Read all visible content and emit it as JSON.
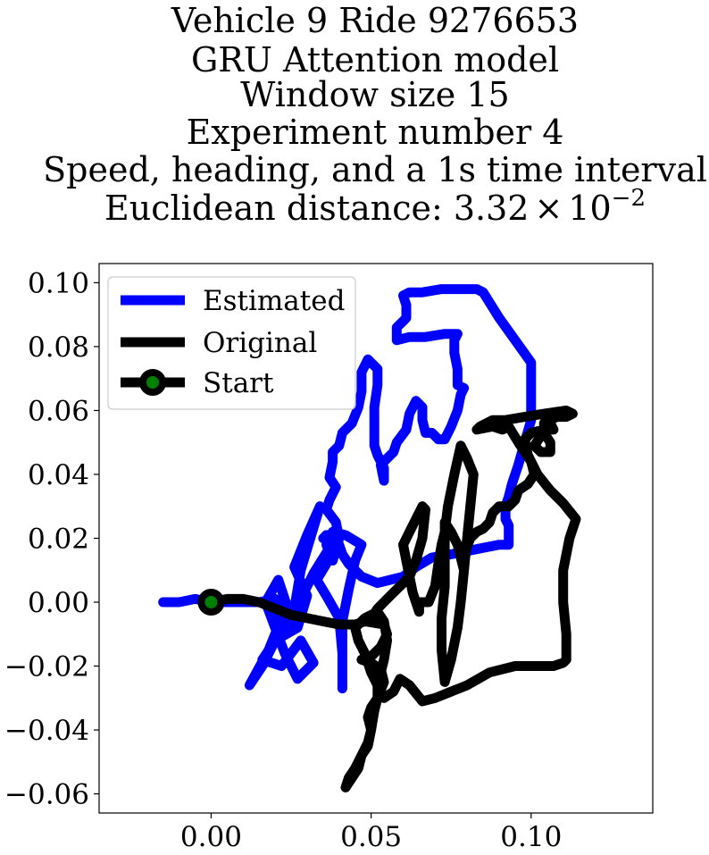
{
  "chart_data": {
    "type": "line",
    "title_lines": [
      "Vehicle 9 Ride 9276653",
      "GRU Attention model",
      "Window size 15",
      "Experiment number 4",
      "Speed, heading, and a 1s time interval",
      "Euclidean distance: "
    ],
    "title_value": {
      "mantissa": "3.32",
      "times": "×",
      "base": "10",
      "exponent": "−2"
    },
    "xlabel": "",
    "ylabel": "",
    "xlim": [
      -0.035,
      0.138
    ],
    "ylim": [
      -0.066,
      0.106
    ],
    "xticks": [
      0.0,
      0.05,
      0.1
    ],
    "xtick_labels": [
      "0.00",
      "0.05",
      "0.10"
    ],
    "yticks": [
      0.1,
      0.08,
      0.06,
      0.04,
      0.02,
      0.0,
      -0.02,
      -0.04,
      -0.06
    ],
    "ytick_labels": [
      "0.10",
      "0.08",
      "0.06",
      "0.04",
      "0.02",
      "0.00",
      "−0.02",
      "−0.04",
      "−0.06"
    ],
    "grid": false,
    "legend_position": "upper-left",
    "series": [
      {
        "name": "Estimated",
        "color": "#0000ff",
        "points": [
          [
            -0.015,
            0.0
          ],
          [
            -0.01,
            0.0
          ],
          [
            -0.005,
            0.001
          ],
          [
            0.0,
            0.0
          ],
          [
            0.005,
            0.0
          ],
          [
            0.01,
            0.0
          ],
          [
            0.015,
            0.0
          ],
          [
            0.02,
            0.001
          ],
          [
            0.022,
            -0.005
          ],
          [
            0.018,
            -0.015
          ],
          [
            0.012,
            -0.026
          ],
          [
            0.016,
            -0.02
          ],
          [
            0.02,
            -0.012
          ],
          [
            0.024,
            -0.002
          ],
          [
            0.021,
            0.007
          ],
          [
            0.017,
            0.0
          ],
          [
            0.02,
            -0.008
          ],
          [
            0.023,
            -0.016
          ],
          [
            0.027,
            -0.024
          ],
          [
            0.032,
            -0.019
          ],
          [
            0.028,
            -0.012
          ],
          [
            0.022,
            -0.02
          ],
          [
            0.016,
            -0.018
          ],
          [
            0.02,
            -0.012
          ],
          [
            0.027,
            -0.008
          ],
          [
            0.03,
            0.002
          ],
          [
            0.026,
            0.011
          ],
          [
            0.03,
            0.021
          ],
          [
            0.034,
            0.03
          ],
          [
            0.031,
            0.02
          ],
          [
            0.028,
            0.01
          ],
          [
            0.026,
            -0.002
          ],
          [
            0.024,
            -0.008
          ],
          [
            0.028,
            0.001
          ],
          [
            0.032,
            0.009
          ],
          [
            0.037,
            0.017
          ],
          [
            0.036,
            0.012
          ],
          [
            0.033,
            0.007
          ],
          [
            0.036,
            0.002
          ],
          [
            0.04,
            -0.005
          ],
          [
            0.041,
            -0.016
          ],
          [
            0.041,
            -0.027
          ],
          [
            0.041,
            -0.015
          ],
          [
            0.041,
            -0.006
          ],
          [
            0.043,
            0.004
          ],
          [
            0.045,
            0.013
          ],
          [
            0.047,
            0.018
          ],
          [
            0.042,
            0.021
          ],
          [
            0.038,
            0.022
          ],
          [
            0.036,
            0.018
          ],
          [
            0.038,
            0.013
          ],
          [
            0.04,
            0.02
          ],
          [
            0.039,
            0.025
          ],
          [
            0.036,
            0.029
          ],
          [
            0.037,
            0.032
          ],
          [
            0.039,
            0.036
          ],
          [
            0.037,
            0.039
          ],
          [
            0.038,
            0.044
          ],
          [
            0.038,
            0.047
          ],
          [
            0.04,
            0.049
          ],
          [
            0.041,
            0.053
          ],
          [
            0.044,
            0.056
          ],
          [
            0.046,
            0.061
          ],
          [
            0.047,
            0.066
          ],
          [
            0.047,
            0.072
          ],
          [
            0.049,
            0.076
          ],
          [
            0.052,
            0.073
          ],
          [
            0.052,
            0.068
          ],
          [
            0.051,
            0.061
          ],
          [
            0.051,
            0.055
          ],
          [
            0.051,
            0.049
          ],
          [
            0.052,
            0.046
          ],
          [
            0.054,
            0.042
          ],
          [
            0.054,
            0.038
          ],
          [
            0.053,
            0.043
          ],
          [
            0.055,
            0.045
          ],
          [
            0.057,
            0.047
          ],
          [
            0.058,
            0.05
          ],
          [
            0.061,
            0.054
          ],
          [
            0.062,
            0.059
          ],
          [
            0.064,
            0.063
          ],
          [
            0.066,
            0.061
          ],
          [
            0.066,
            0.057
          ],
          [
            0.067,
            0.053
          ],
          [
            0.069,
            0.053
          ],
          [
            0.071,
            0.051
          ],
          [
            0.073,
            0.051
          ],
          [
            0.075,
            0.055
          ],
          [
            0.077,
            0.06
          ],
          [
            0.078,
            0.065
          ],
          [
            0.079,
            0.067
          ],
          [
            0.077,
            0.068
          ],
          [
            0.077,
            0.073
          ],
          [
            0.076,
            0.078
          ],
          [
            0.076,
            0.082
          ],
          [
            0.077,
            0.084
          ],
          [
            0.073,
            0.084
          ],
          [
            0.067,
            0.083
          ],
          [
            0.062,
            0.083
          ],
          [
            0.058,
            0.082
          ],
          [
            0.058,
            0.086
          ],
          [
            0.06,
            0.088
          ],
          [
            0.061,
            0.089
          ],
          [
            0.061,
            0.093
          ],
          [
            0.06,
            0.096
          ],
          [
            0.062,
            0.097
          ],
          [
            0.066,
            0.097
          ],
          [
            0.072,
            0.098
          ],
          [
            0.078,
            0.098
          ],
          [
            0.083,
            0.098
          ],
          [
            0.085,
            0.097
          ],
          [
            0.09,
            0.089
          ],
          [
            0.095,
            0.082
          ],
          [
            0.1,
            0.075
          ],
          [
            0.1,
            0.064
          ],
          [
            0.1,
            0.057
          ],
          [
            0.098,
            0.05
          ],
          [
            0.096,
            0.043
          ],
          [
            0.094,
            0.037
          ],
          [
            0.093,
            0.033
          ],
          [
            0.092,
            0.03
          ],
          [
            0.092,
            0.026
          ],
          [
            0.093,
            0.024
          ],
          [
            0.093,
            0.02
          ],
          [
            0.093,
            0.019
          ],
          [
            0.093,
            0.018
          ],
          [
            0.09,
            0.018
          ],
          [
            0.085,
            0.017
          ],
          [
            0.08,
            0.016
          ],
          [
            0.075,
            0.015
          ],
          [
            0.069,
            0.014
          ],
          [
            0.064,
            0.011
          ],
          [
            0.06,
            0.008
          ],
          [
            0.056,
            0.007
          ],
          [
            0.052,
            0.006
          ],
          [
            0.047,
            0.008
          ],
          [
            0.045,
            0.01
          ],
          [
            0.043,
            0.012
          ],
          [
            0.041,
            0.015
          ],
          [
            0.04,
            0.018
          ],
          [
            0.038,
            0.021
          ],
          [
            0.036,
            0.021
          ],
          [
            0.035,
            0.02
          ]
        ]
      },
      {
        "name": "Original",
        "color": "#000000",
        "points": [
          [
            0.0,
            0.0
          ],
          [
            0.005,
            0.001
          ],
          [
            0.01,
            0.001
          ],
          [
            0.015,
            0.0
          ],
          [
            0.02,
            -0.002
          ],
          [
            0.025,
            -0.004
          ],
          [
            0.03,
            -0.005
          ],
          [
            0.035,
            -0.006
          ],
          [
            0.04,
            -0.007
          ],
          [
            0.045,
            -0.007
          ],
          [
            0.048,
            -0.006
          ],
          [
            0.054,
            -0.007
          ],
          [
            0.055,
            -0.01
          ],
          [
            0.053,
            -0.014
          ],
          [
            0.05,
            -0.017
          ],
          [
            0.047,
            -0.018
          ],
          [
            0.05,
            -0.019
          ],
          [
            0.053,
            -0.021
          ],
          [
            0.054,
            -0.025
          ],
          [
            0.052,
            -0.03
          ],
          [
            0.05,
            -0.033
          ],
          [
            0.049,
            -0.036
          ],
          [
            0.05,
            -0.04
          ],
          [
            0.049,
            -0.045
          ],
          [
            0.047,
            -0.048
          ],
          [
            0.046,
            -0.052
          ],
          [
            0.044,
            -0.055
          ],
          [
            0.042,
            -0.058
          ],
          [
            0.043,
            -0.055
          ],
          [
            0.045,
            -0.052
          ],
          [
            0.047,
            -0.048
          ],
          [
            0.049,
            -0.044
          ],
          [
            0.05,
            -0.04
          ],
          [
            0.051,
            -0.034
          ],
          [
            0.052,
            -0.03
          ],
          [
            0.052,
            -0.026
          ],
          [
            0.053,
            -0.022
          ],
          [
            0.054,
            -0.018
          ],
          [
            0.055,
            -0.012
          ],
          [
            0.054,
            -0.006
          ],
          [
            0.052,
            -0.003
          ],
          [
            0.048,
            -0.005
          ],
          [
            0.045,
            -0.008
          ],
          [
            0.046,
            -0.012
          ],
          [
            0.048,
            -0.016
          ],
          [
            0.05,
            -0.022
          ],
          [
            0.052,
            -0.026
          ],
          [
            0.054,
            -0.03
          ],
          [
            0.057,
            -0.028
          ],
          [
            0.059,
            -0.024
          ],
          [
            0.062,
            -0.026
          ],
          [
            0.066,
            -0.031
          ],
          [
            0.07,
            -0.03
          ],
          [
            0.075,
            -0.028
          ],
          [
            0.08,
            -0.026
          ],
          [
            0.087,
            -0.022
          ],
          [
            0.095,
            -0.02
          ],
          [
            0.102,
            -0.02
          ],
          [
            0.107,
            -0.02
          ],
          [
            0.11,
            -0.019
          ],
          [
            0.111,
            -0.018
          ],
          [
            0.111,
            -0.01
          ],
          [
            0.11,
            0.0
          ],
          [
            0.11,
            0.01
          ],
          [
            0.112,
            0.02
          ],
          [
            0.114,
            0.026
          ],
          [
            0.11,
            0.031
          ],
          [
            0.106,
            0.035
          ],
          [
            0.102,
            0.04
          ],
          [
            0.099,
            0.046
          ],
          [
            0.098,
            0.051
          ],
          [
            0.1,
            0.053
          ],
          [
            0.104,
            0.054
          ],
          [
            0.107,
            0.054
          ],
          [
            0.106,
            0.056
          ],
          [
            0.103,
            0.052
          ],
          [
            0.101,
            0.049
          ],
          [
            0.103,
            0.047
          ],
          [
            0.106,
            0.047
          ],
          [
            0.106,
            0.05
          ],
          [
            0.104,
            0.053
          ],
          [
            0.104,
            0.056
          ],
          [
            0.108,
            0.058
          ],
          [
            0.111,
            0.058
          ],
          [
            0.113,
            0.059
          ],
          [
            0.111,
            0.06
          ],
          [
            0.104,
            0.059
          ],
          [
            0.098,
            0.058
          ],
          [
            0.092,
            0.057
          ],
          [
            0.088,
            0.057
          ],
          [
            0.086,
            0.056
          ],
          [
            0.084,
            0.055
          ],
          [
            0.083,
            0.054
          ],
          [
            0.088,
            0.055
          ],
          [
            0.091,
            0.054
          ],
          [
            0.093,
            0.055
          ],
          [
            0.096,
            0.05
          ],
          [
            0.1,
            0.044
          ],
          [
            0.101,
            0.04
          ],
          [
            0.099,
            0.037
          ],
          [
            0.096,
            0.035
          ],
          [
            0.095,
            0.032
          ],
          [
            0.093,
            0.03
          ],
          [
            0.09,
            0.03
          ],
          [
            0.088,
            0.028
          ],
          [
            0.087,
            0.025
          ],
          [
            0.085,
            0.023
          ],
          [
            0.083,
            0.022
          ],
          [
            0.081,
            0.02
          ],
          [
            0.079,
            0.015
          ],
          [
            0.079,
            0.012
          ],
          [
            0.079,
            0.01
          ],
          [
            0.078,
            0.014
          ],
          [
            0.077,
            0.018
          ],
          [
            0.075,
            0.022
          ],
          [
            0.073,
            0.025
          ],
          [
            0.073,
            0.015
          ],
          [
            0.073,
            0.005
          ],
          [
            0.072,
            -0.005
          ],
          [
            0.072,
            -0.015
          ],
          [
            0.073,
            -0.025
          ],
          [
            0.075,
            -0.018
          ],
          [
            0.077,
            -0.008
          ],
          [
            0.078,
            0.0
          ],
          [
            0.079,
            0.01
          ],
          [
            0.08,
            0.02
          ],
          [
            0.081,
            0.03
          ],
          [
            0.082,
            0.04
          ],
          [
            0.08,
            0.045
          ],
          [
            0.078,
            0.049
          ],
          [
            0.076,
            0.04
          ],
          [
            0.074,
            0.03
          ],
          [
            0.073,
            0.022
          ],
          [
            0.072,
            0.018
          ],
          [
            0.071,
            0.012
          ],
          [
            0.07,
            0.005
          ],
          [
            0.068,
            0.0
          ],
          [
            0.065,
            0.0
          ],
          [
            0.065,
            -0.003
          ],
          [
            0.063,
            0.003
          ],
          [
            0.062,
            0.008
          ],
          [
            0.061,
            0.013
          ],
          [
            0.06,
            0.018
          ],
          [
            0.062,
            0.022
          ],
          [
            0.064,
            0.026
          ],
          [
            0.065,
            0.028
          ],
          [
            0.066,
            0.03
          ],
          [
            0.067,
            0.029
          ],
          [
            0.066,
            0.02
          ],
          [
            0.064,
            0.013
          ],
          [
            0.062,
            0.008
          ],
          [
            0.06,
            0.006
          ],
          [
            0.058,
            0.004
          ],
          [
            0.055,
            0.001
          ],
          [
            0.052,
            -0.002
          ],
          [
            0.05,
            -0.005
          ],
          [
            0.049,
            -0.006
          ]
        ]
      }
    ],
    "start_point": {
      "name": "Start",
      "x": 0.0,
      "y": 0.0,
      "edge_color": "#000000",
      "face_color": "#008000"
    }
  }
}
